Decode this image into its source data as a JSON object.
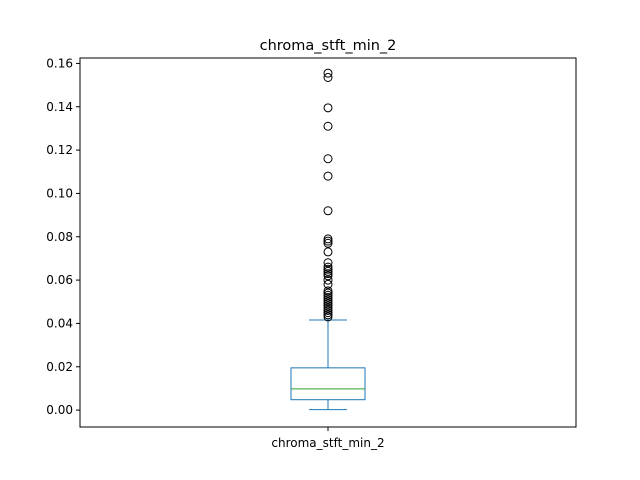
{
  "chart_data": {
    "type": "box",
    "title": "chroma_stft_min_2",
    "categories": [
      "chroma_stft_min_2"
    ],
    "ylim": [
      -0.0078,
      0.1625
    ],
    "yticks": [
      0.0,
      0.02,
      0.04,
      0.06,
      0.08,
      0.1,
      0.12,
      0.14,
      0.16
    ],
    "ytick_labels": [
      "0.00",
      "0.02",
      "0.04",
      "0.06",
      "0.08",
      "0.10",
      "0.12",
      "0.14",
      "0.16"
    ],
    "grid": false,
    "box": {
      "whisker_low": 0.0002,
      "q1": 0.0048,
      "median": 0.0098,
      "q3": 0.0195,
      "whisker_high": 0.0416
    },
    "outliers": [
      0.043,
      0.044,
      0.045,
      0.046,
      0.047,
      0.048,
      0.049,
      0.05,
      0.051,
      0.052,
      0.053,
      0.054,
      0.055,
      0.058,
      0.06,
      0.062,
      0.063,
      0.064,
      0.065,
      0.066,
      0.068,
      0.073,
      0.077,
      0.078,
      0.079,
      0.092,
      0.108,
      0.116,
      0.131,
      0.1395,
      0.1535,
      0.1555
    ],
    "colors": {
      "box": "#1f77b4",
      "median": "#2ca02c",
      "outlier": "#000000"
    }
  }
}
